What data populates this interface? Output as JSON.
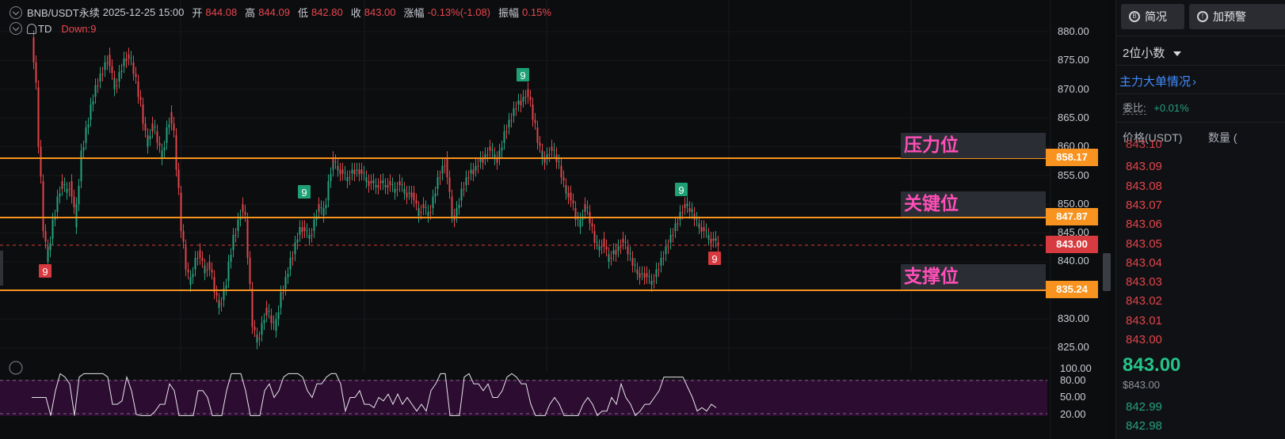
{
  "header": {
    "symbol": "BNB/USDT永续",
    "datetime": "2025-12-25 15:00",
    "open_label": "开",
    "open": "844.08",
    "high_label": "高",
    "high": "844.09",
    "low_label": "低",
    "low": "842.80",
    "close_label": "收",
    "close": "843.00",
    "change_label": "涨幅",
    "change": "-0.13%(-1.08)",
    "amplitude_label": "振幅",
    "amplitude": "0.15%"
  },
  "indicator": {
    "name": "TD",
    "value": "Down:9"
  },
  "levels": {
    "resistance": {
      "label": "压力位",
      "price": "858.17"
    },
    "key": {
      "label": "关键位",
      "price": "847.87"
    },
    "support": {
      "label": "支撑位",
      "price": "835.24"
    },
    "current": {
      "price": "843.00"
    }
  },
  "price_axis": [
    "880.00",
    "875.00",
    "870.00",
    "865.00",
    "860.00",
    "855.00",
    "850.00",
    "845.00",
    "840.00",
    "835.00",
    "830.00",
    "825.00"
  ],
  "osc_axis": [
    "100.00",
    "80.00",
    "50.00",
    "20.00"
  ],
  "td_markers": [
    {
      "label": "9",
      "type": "down"
    },
    {
      "label": "9",
      "type": "up"
    },
    {
      "label": "9",
      "type": "up"
    },
    {
      "label": "9",
      "type": "up"
    },
    {
      "label": "9",
      "type": "down"
    }
  ],
  "panel": {
    "tab1": "简况",
    "tab2": "加预警",
    "decimal_select": "2位小数",
    "big_orders_link": "主力大单情况",
    "ratio_label": "委比:",
    "ratio_value": "+0.01%",
    "col_price": "价格(USDT)",
    "col_qty": "数量 (",
    "asks": [
      "843.10",
      "843.09",
      "843.08",
      "843.07",
      "843.06",
      "843.05",
      "843.04",
      "843.03",
      "843.02",
      "843.01",
      "843.00"
    ],
    "last_price": "843.00",
    "last_price_usd": "$843.00",
    "bids": [
      "842.99",
      "842.98"
    ]
  },
  "colors": {
    "up": "#25a27f",
    "down": "#e0454b",
    "level_line": "#f7931e",
    "label_text": "#ff4fb8",
    "osc_bg": "#2c0c31"
  }
}
